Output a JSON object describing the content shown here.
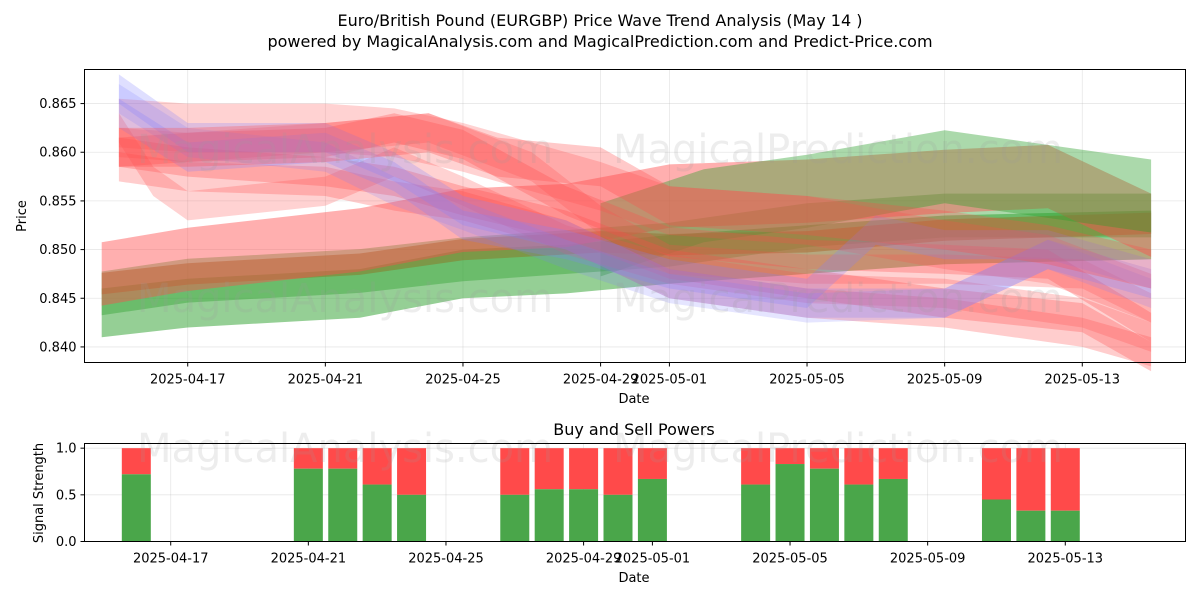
{
  "title_line1": "Euro/British Pound (EURGBP) Price Wave Trend Analysis (May 14 )",
  "title_line2": "powered by MagicalAnalysis.com and MagicalPrediction.com and Predict-Price.com",
  "watermarks": [
    "MagicalAnalysis.com",
    "MagicalPrediction.com"
  ],
  "colors": {
    "green": "#2ca02c",
    "red": "#ff4d4d",
    "blue": "#7f7fff",
    "olive": "#8a7a2a",
    "bar_green": "#4aa64a",
    "bar_red": "#ff4a4a"
  },
  "chart_data": [
    {
      "type": "area",
      "xlabel": "Date",
      "ylabel": "Price",
      "xticks": [
        "2025-04-17",
        "2025-04-21",
        "2025-04-25",
        "2025-04-29",
        "2025-05-01",
        "2025-05-05",
        "2025-05-09",
        "2025-05-13"
      ],
      "yticks": [
        "0.840",
        "0.845",
        "0.850",
        "0.855",
        "0.860",
        "0.865"
      ],
      "xlim": [
        "2025-04-14",
        "2025-05-16"
      ],
      "ylim": [
        0.8384,
        0.8685
      ],
      "series": [
        {
          "color": "green",
          "alpha": 0.5,
          "width": 0.005,
          "points": [
            [
              "2025-04-14T12:00",
              0.8435
            ],
            [
              "2025-04-17",
              0.8445
            ],
            [
              "2025-04-22",
              0.8455
            ],
            [
              "2025-04-25",
              0.8475
            ],
            [
              "2025-04-28",
              0.848
            ],
            [
              "2025-05-01",
              0.849
            ],
            [
              "2025-05-05",
              0.85
            ],
            [
              "2025-05-09",
              0.851
            ],
            [
              "2025-05-15",
              0.8515
            ]
          ]
        },
        {
          "color": "green",
          "alpha": 0.4,
          "width": 0.0045,
          "points": [
            [
              "2025-04-14T12:00",
              0.8455
            ],
            [
              "2025-04-17",
              0.8468
            ],
            [
              "2025-04-22",
              0.8478
            ],
            [
              "2025-04-25",
              0.849
            ],
            [
              "2025-04-29",
              0.85
            ],
            [
              "2025-05-01",
              0.8505
            ],
            [
              "2025-05-05",
              0.8525
            ],
            [
              "2025-05-09",
              0.8535
            ],
            [
              "2025-05-15",
              0.8535
            ]
          ]
        },
        {
          "color": "olive",
          "alpha": 0.55,
          "width": 0.0022,
          "points": [
            [
              "2025-04-14T12:00",
              0.8465
            ],
            [
              "2025-04-17",
              0.8475
            ],
            [
              "2025-04-22",
              0.8485
            ],
            [
              "2025-04-25",
              0.85
            ],
            [
              "2025-04-29",
              0.8508
            ],
            [
              "2025-05-01",
              0.8505
            ],
            [
              "2025-05-05",
              0.8508
            ],
            [
              "2025-05-09",
              0.852
            ],
            [
              "2025-05-15",
              0.8527
            ]
          ]
        },
        {
          "color": "red",
          "alpha": 0.45,
          "width": 0.0065,
          "points": [
            [
              "2025-04-14T12:00",
              0.8475
            ],
            [
              "2025-04-17",
              0.849
            ],
            [
              "2025-04-22",
              0.851
            ],
            [
              "2025-04-25",
              0.853
            ],
            [
              "2025-04-28",
              0.8535
            ],
            [
              "2025-05-01",
              0.8555
            ],
            [
              "2025-05-05",
              0.856
            ],
            [
              "2025-05-09",
              0.857
            ],
            [
              "2025-05-12",
              0.8575
            ],
            [
              "2025-05-15",
              0.8525
            ]
          ]
        },
        {
          "color": "green",
          "alpha": 0.4,
          "width": 0.0075,
          "points": [
            [
              "2025-04-29",
              0.851
            ],
            [
              "2025-05-02",
              0.8545
            ],
            [
              "2025-05-05",
              0.856
            ],
            [
              "2025-05-09",
              0.8585
            ],
            [
              "2025-05-15",
              0.8555
            ]
          ]
        },
        {
          "color": "red",
          "alpha": 0.25,
          "width": 0.005,
          "points": [
            [
              "2025-04-15",
              0.863
            ],
            [
              "2025-04-17",
              0.8625
            ],
            [
              "2025-04-21",
              0.8625
            ],
            [
              "2025-04-23",
              0.862
            ],
            [
              "2025-04-25",
              0.8605
            ],
            [
              "2025-04-27",
              0.8585
            ],
            [
              "2025-04-29",
              0.8565
            ],
            [
              "2025-05-01",
              0.854
            ],
            [
              "2025-05-05",
              0.853
            ],
            [
              "2025-05-09",
              0.8505
            ],
            [
              "2025-05-12",
              0.849
            ],
            [
              "2025-05-15",
              0.845
            ]
          ]
        },
        {
          "color": "red",
          "alpha": 0.3,
          "width": 0.003,
          "points": [
            [
              "2025-04-15",
              0.86
            ],
            [
              "2025-04-17",
              0.8605
            ],
            [
              "2025-04-21",
              0.861
            ],
            [
              "2025-04-23",
              0.8625
            ],
            [
              "2025-04-25",
              0.8608
            ],
            [
              "2025-04-28",
              0.855
            ],
            [
              "2025-05-01",
              0.8508
            ],
            [
              "2025-05-05",
              0.8495
            ],
            [
              "2025-05-09",
              0.849
            ],
            [
              "2025-05-12",
              0.8485
            ],
            [
              "2025-05-15",
              0.842
            ]
          ]
        },
        {
          "color": "red",
          "alpha": 0.25,
          "width": 0.003,
          "points": [
            [
              "2025-04-15",
              0.8625
            ],
            [
              "2025-04-16",
              0.857
            ],
            [
              "2025-04-17",
              0.8545
            ],
            [
              "2025-04-21",
              0.856
            ],
            [
              "2025-04-23",
              0.859
            ],
            [
              "2025-04-25",
              0.856
            ],
            [
              "2025-04-28",
              0.851
            ],
            [
              "2025-05-01",
              0.848
            ],
            [
              "2025-05-05",
              0.846
            ],
            [
              "2025-05-09",
              0.8455
            ],
            [
              "2025-05-13",
              0.8435
            ],
            [
              "2025-05-15",
              0.841
            ]
          ]
        },
        {
          "color": "red",
          "alpha": 0.3,
          "width": 0.003,
          "points": [
            [
              "2025-04-15",
              0.86
            ],
            [
              "2025-04-17",
              0.859
            ],
            [
              "2025-04-21",
              0.858
            ],
            [
              "2025-04-23",
              0.857
            ],
            [
              "2025-04-25",
              0.855
            ],
            [
              "2025-04-28",
              0.8525
            ],
            [
              "2025-05-01",
              0.8485
            ],
            [
              "2025-05-05",
              0.8465
            ],
            [
              "2025-05-09",
              0.8445
            ],
            [
              "2025-05-13",
              0.843
            ],
            [
              "2025-05-15",
              0.839
            ]
          ]
        },
        {
          "color": "red",
          "alpha": 0.28,
          "width": 0.003,
          "points": [
            [
              "2025-04-15",
              0.8585
            ],
            [
              "2025-04-17",
              0.8575
            ],
            [
              "2025-04-21",
              0.857
            ],
            [
              "2025-04-23",
              0.8555
            ],
            [
              "2025-04-25",
              0.8545
            ],
            [
              "2025-04-28",
              0.8515
            ],
            [
              "2025-05-01",
              0.8465
            ],
            [
              "2025-05-05",
              0.8445
            ],
            [
              "2025-05-09",
              0.8435
            ],
            [
              "2025-05-13",
              0.8415
            ],
            [
              "2025-05-15",
              0.8395
            ]
          ]
        },
        {
          "color": "red",
          "alpha": 0.25,
          "width": 0.003,
          "points": [
            [
              "2025-04-15",
              0.861
            ],
            [
              "2025-04-17",
              0.8605
            ],
            [
              "2025-04-21",
              0.8615
            ],
            [
              "2025-04-24",
              0.8625
            ],
            [
              "2025-04-27",
              0.8585
            ],
            [
              "2025-04-29",
              0.853
            ],
            [
              "2025-05-01",
              0.849
            ],
            [
              "2025-05-05",
              0.848
            ],
            [
              "2025-05-09",
              0.848
            ],
            [
              "2025-05-13",
              0.8475
            ],
            [
              "2025-05-15",
              0.844
            ]
          ]
        },
        {
          "color": "blue",
          "alpha": 0.25,
          "width": 0.003,
          "points": [
            [
              "2025-04-15",
              0.8665
            ],
            [
              "2025-04-17",
              0.8615
            ],
            [
              "2025-04-21",
              0.8615
            ],
            [
              "2025-04-23",
              0.8585
            ],
            [
              "2025-04-25",
              0.854
            ],
            [
              "2025-04-28",
              0.8515
            ],
            [
              "2025-05-01",
              0.8465
            ],
            [
              "2025-05-05",
              0.8445
            ],
            [
              "2025-05-09",
              0.8445
            ],
            [
              "2025-05-12",
              0.8495
            ],
            [
              "2025-05-15",
              0.8465
            ]
          ]
        },
        {
          "color": "blue",
          "alpha": 0.25,
          "width": 0.003,
          "points": [
            [
              "2025-04-15",
              0.864
            ],
            [
              "2025-04-17",
              0.8595
            ],
            [
              "2025-04-21",
              0.8605
            ],
            [
              "2025-04-23",
              0.8575
            ],
            [
              "2025-04-25",
              0.8525
            ],
            [
              "2025-04-28",
              0.8505
            ],
            [
              "2025-05-01",
              0.8475
            ],
            [
              "2025-05-05",
              0.8455
            ],
            [
              "2025-05-07",
              0.852
            ],
            [
              "2025-05-09",
              0.8505
            ],
            [
              "2025-05-12",
              0.8505
            ],
            [
              "2025-05-15",
              0.8475
            ]
          ]
        },
        {
          "color": "blue",
          "alpha": 0.2,
          "width": 0.003,
          "points": [
            [
              "2025-04-15",
              0.8655
            ],
            [
              "2025-04-17",
              0.861
            ],
            [
              "2025-04-21",
              0.8595
            ],
            [
              "2025-04-23",
              0.856
            ],
            [
              "2025-04-25",
              0.8535
            ],
            [
              "2025-04-28",
              0.8495
            ],
            [
              "2025-05-01",
              0.846
            ],
            [
              "2025-05-05",
              0.844
            ],
            [
              "2025-05-09",
              0.8445
            ],
            [
              "2025-05-12",
              0.8495
            ],
            [
              "2025-05-15",
              0.8455
            ]
          ]
        },
        {
          "color": "red",
          "alpha": 0.3,
          "width": 0.004,
          "points": [
            [
              "2025-04-15",
              0.8605
            ],
            [
              "2025-04-17",
              0.8605
            ],
            [
              "2025-04-21",
              0.861
            ],
            [
              "2025-04-24",
              0.862
            ],
            [
              "2025-04-26",
              0.8595
            ],
            [
              "2025-04-29",
              0.8585
            ],
            [
              "2025-05-01",
              0.8545
            ],
            [
              "2025-05-05",
              0.8535
            ],
            [
              "2025-05-09",
              0.852
            ],
            [
              "2025-05-12",
              0.8505
            ],
            [
              "2025-05-15",
              0.848
            ]
          ]
        }
      ]
    },
    {
      "type": "bar",
      "title": "Buy and Sell Powers",
      "xlabel": "Date",
      "ylabel": "Signal Strength",
      "xticks": [
        "2025-04-17",
        "2025-04-21",
        "2025-04-25",
        "2025-04-29",
        "2025-05-01",
        "2025-05-05",
        "2025-05-09",
        "2025-05-13"
      ],
      "yticks": [
        "0.0",
        "0.5",
        "1.0"
      ],
      "xlim": [
        "2025-04-14",
        "2025-05-16"
      ],
      "ylim": [
        0,
        1.05
      ],
      "series_names": [
        "buy",
        "sell"
      ],
      "categories": [
        "2025-04-16",
        "2025-04-21",
        "2025-04-22",
        "2025-04-23",
        "2025-04-24",
        "2025-04-27",
        "2025-04-28",
        "2025-04-29",
        "2025-04-30",
        "2025-05-01",
        "2025-05-04",
        "2025-05-05",
        "2025-05-06",
        "2025-05-07",
        "2025-05-08",
        "2025-05-11",
        "2025-05-12",
        "2025-05-13"
      ],
      "buy": [
        0.72,
        0.78,
        0.78,
        0.61,
        0.5,
        0.5,
        0.56,
        0.56,
        0.5,
        0.67,
        0.61,
        0.83,
        0.78,
        0.61,
        0.67,
        0.45,
        0.33,
        0.33
      ]
    }
  ]
}
